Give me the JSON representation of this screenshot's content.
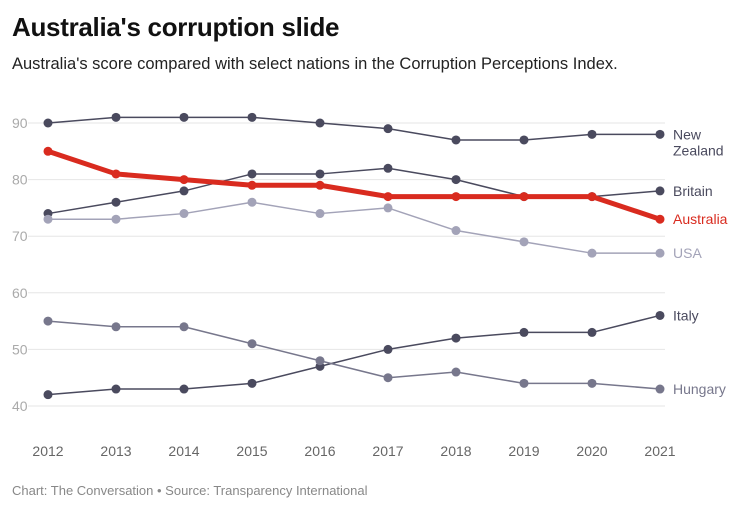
{
  "title": "Australia's corruption slide",
  "subtitle": "Australia's score compared with select nations in the Corruption Perceptions Index.",
  "footer": "Chart: The Conversation • Source: Transparency International",
  "chart_data": {
    "type": "line",
    "title": "Australia's corruption slide",
    "subtitle": "Australia's score compared with select nations in the Corruption Perceptions Index.",
    "xlabel": "",
    "ylabel": "",
    "x": [
      2012,
      2013,
      2014,
      2015,
      2016,
      2017,
      2018,
      2019,
      2020,
      2021
    ],
    "ylim": [
      40,
      90
    ],
    "yticks": [
      40,
      50,
      60,
      70,
      80,
      90
    ],
    "grid": true,
    "legend": "direct labels at line ends (right)",
    "series": [
      {
        "name": "New Zealand",
        "label_lines": [
          "New",
          "Zealand"
        ],
        "color": "#4a4a5e",
        "values": [
          90,
          91,
          91,
          91,
          90,
          89,
          87,
          87,
          88,
          88
        ]
      },
      {
        "name": "Britain",
        "label_lines": [
          "Britain"
        ],
        "color": "#4a4a5e",
        "values": [
          74,
          76,
          78,
          81,
          81,
          82,
          80,
          77,
          77,
          78
        ]
      },
      {
        "name": "USA",
        "label_lines": [
          "USA"
        ],
        "color": "#a3a3b8",
        "values": [
          73,
          73,
          74,
          76,
          74,
          75,
          71,
          69,
          67,
          67
        ]
      },
      {
        "name": "Italy",
        "label_lines": [
          "Italy"
        ],
        "color": "#4a4a5e",
        "values": [
          42,
          43,
          43,
          44,
          47,
          50,
          52,
          53,
          53,
          56
        ]
      },
      {
        "name": "Hungary",
        "label_lines": [
          "Hungary"
        ],
        "color": "#77778c",
        "values": [
          55,
          54,
          54,
          51,
          48,
          45,
          46,
          44,
          44,
          43
        ]
      },
      {
        "name": "Australia",
        "label_lines": [
          "Australia"
        ],
        "color": "#d92b1f",
        "highlight": true,
        "values": [
          85,
          81,
          80,
          79,
          79,
          77,
          77,
          77,
          77,
          73
        ]
      }
    ]
  }
}
